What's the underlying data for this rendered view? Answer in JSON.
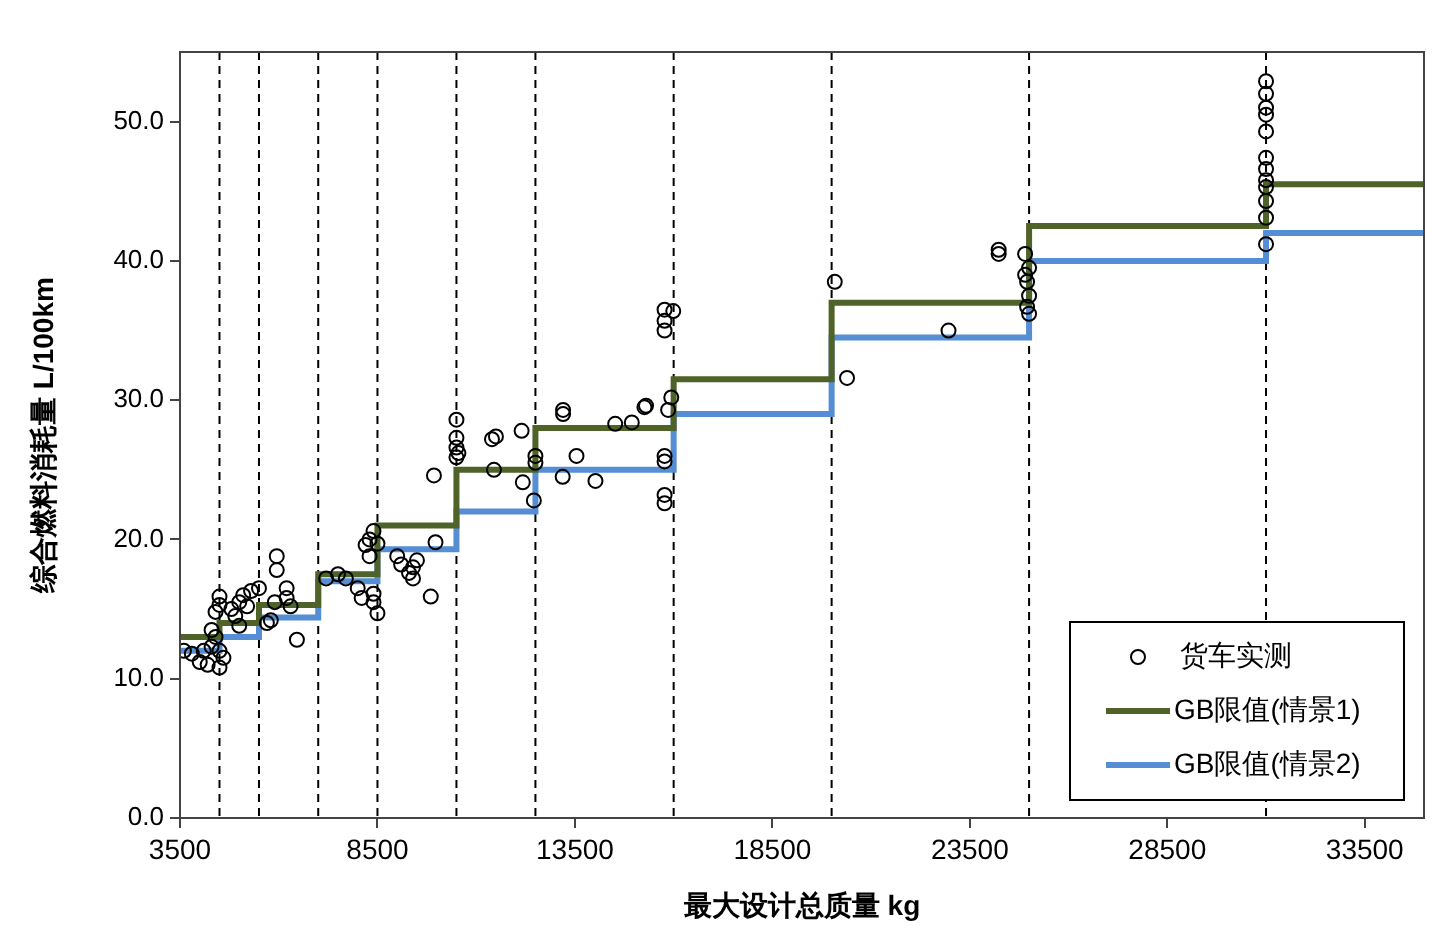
{
  "chart_data": {
    "type": "scatter",
    "xlabel": "最大设计总质量 kg",
    "ylabel": "综合燃料消耗量 L/100km",
    "xlim": [
      3500,
      35000
    ],
    "xticks": [
      3500,
      8500,
      13500,
      18500,
      23500,
      28500,
      33500
    ],
    "ylim": [
      0,
      55
    ],
    "yticks": [
      {
        "value": 0,
        "label": "0.0"
      },
      {
        "value": 10,
        "label": "10.0"
      },
      {
        "value": 20,
        "label": "20.0"
      },
      {
        "value": 30,
        "label": "30.0"
      },
      {
        "value": 40,
        "label": "40.0"
      },
      {
        "value": 50,
        "label": "50.0"
      }
    ],
    "grid": false,
    "legend": "bottom right",
    "ref_lines": [
      {
        "axis": "x",
        "value": 4500,
        "color": "#000000",
        "line_style": "dashed"
      },
      {
        "axis": "x",
        "value": 5500,
        "color": "#000000",
        "line_style": "dashed"
      },
      {
        "axis": "x",
        "value": 7000,
        "color": "#000000",
        "line_style": "dashed"
      },
      {
        "axis": "x",
        "value": 8500,
        "color": "#000000",
        "line_style": "dashed"
      },
      {
        "axis": "x",
        "value": 10500,
        "color": "#000000",
        "line_style": "dashed"
      },
      {
        "axis": "x",
        "value": 12500,
        "color": "#000000",
        "line_style": "dashed"
      },
      {
        "axis": "x",
        "value": 16000,
        "color": "#000000",
        "line_style": "dashed"
      },
      {
        "axis": "x",
        "value": 20000,
        "color": "#000000",
        "line_style": "dashed"
      },
      {
        "axis": "x",
        "value": 25000,
        "color": "#000000",
        "line_style": "dashed"
      },
      {
        "axis": "x",
        "value": 31000,
        "color": "#000000",
        "line_style": "dashed"
      }
    ],
    "series": [
      {
        "name": "货车实测",
        "marker": "circle",
        "color": "#000000",
        "x": [
          3600,
          3800,
          4000,
          4200,
          4300,
          4400,
          4400,
          4500,
          4500,
          4500,
          4500,
          4600,
          4300,
          4100,
          4800,
          5000,
          5100,
          5200,
          5000,
          4900,
          5300,
          5500,
          5950,
          5950,
          5700,
          5900,
          6200,
          6300,
          6460,
          6200,
          5800,
          7200,
          7500,
          8000,
          7700,
          8100,
          8400,
          8400,
          8300,
          8200,
          8300,
          8500,
          8400,
          8500,
          9000,
          9100,
          9300,
          9400,
          9500,
          9400,
          9850,
          9930,
          9970,
          10500,
          10500,
          10500,
          10500,
          10550,
          11400,
          11500,
          12150,
          11450,
          12180,
          12460,
          12500,
          12500,
          13200,
          13200,
          13540,
          13190,
          14020,
          14520,
          14940,
          15300,
          15770,
          15770,
          15770,
          15990,
          15770,
          15770,
          15770,
          15770,
          15860,
          15940,
          15260,
          20080,
          20390,
          22960,
          24230,
          24230,
          24900,
          25000,
          24950,
          25000,
          24950,
          25000,
          24900,
          31000,
          31000,
          31000,
          31000,
          31000,
          31000,
          31000,
          31000,
          31000,
          31000,
          31000,
          31000
        ],
        "values": [
          12.0,
          11.8,
          11.2,
          11.0,
          12.3,
          13.0,
          14.8,
          15.9,
          15.3,
          12.0,
          10.8,
          11.5,
          13.5,
          12.0,
          15.0,
          15.5,
          16.0,
          15.2,
          13.8,
          14.5,
          16.3,
          16.5,
          18.8,
          17.8,
          14.0,
          15.5,
          15.8,
          15.2,
          12.8,
          16.5,
          14.2,
          17.2,
          17.5,
          16.5,
          17.2,
          15.8,
          15.5,
          16.1,
          18.8,
          19.6,
          20.0,
          19.7,
          20.6,
          14.7,
          18.8,
          18.2,
          17.6,
          18.0,
          18.5,
          17.2,
          15.9,
          24.6,
          19.8,
          28.6,
          27.3,
          26.6,
          25.9,
          26.2,
          27.2,
          27.4,
          27.8,
          25.0,
          24.1,
          22.8,
          26.0,
          25.5,
          29.3,
          29.0,
          26.0,
          24.5,
          24.2,
          28.3,
          28.4,
          29.6,
          35.0,
          36.5,
          35.7,
          36.4,
          26.0,
          25.6,
          23.2,
          22.6,
          29.3,
          30.2,
          29.5,
          38.5,
          31.6,
          35.0,
          40.5,
          40.8,
          40.5,
          39.5,
          38.5,
          37.5,
          36.7,
          36.2,
          39.0,
          52.9,
          52.0,
          51.0,
          50.5,
          49.3,
          47.4,
          46.6,
          45.8,
          45.3,
          44.3,
          43.1,
          41.2
        ]
      },
      {
        "name": "GB限值(情景1)",
        "type": "step",
        "color": "#4f6228",
        "x": [
          3500,
          4500,
          5500,
          7000,
          8500,
          10500,
          12500,
          16000,
          20000,
          25000,
          31000,
          35000
        ],
        "values": [
          13.0,
          14.0,
          15.3,
          17.5,
          21.0,
          25.0,
          28.0,
          31.5,
          37.0,
          42.5,
          45.5,
          45.5
        ]
      },
      {
        "name": "GB限值(情景2)",
        "type": "step",
        "color": "#558ed5",
        "x": [
          3500,
          4500,
          5500,
          7000,
          8500,
          10500,
          12500,
          16000,
          20000,
          25000,
          31000,
          35000
        ],
        "values": [
          12.0,
          13.0,
          14.4,
          17.0,
          19.3,
          22.0,
          25.0,
          29.0,
          34.5,
          40.0,
          42.0,
          42.0
        ]
      }
    ]
  }
}
